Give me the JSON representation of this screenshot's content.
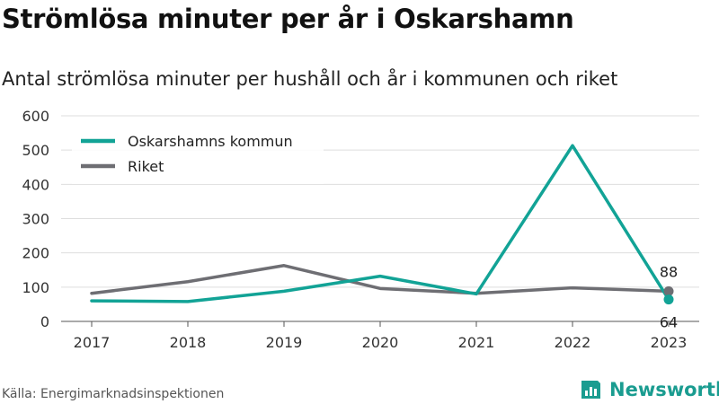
{
  "title": "Strömlösa minuter per år i Oskarshamn",
  "subtitle": "Antal strömlösa minuter per hushåll och år i kommunen och riket",
  "source": "Källa: Energimarknadsinspektionen",
  "brand": {
    "name": "Newsworthy",
    "icon": "newsworthy-logo-icon",
    "color": "#1a9c90"
  },
  "chart_data": {
    "type": "line",
    "title": "",
    "xlabel": "",
    "ylabel": "",
    "categories": [
      "2017",
      "2018",
      "2019",
      "2020",
      "2021",
      "2022",
      "2023"
    ],
    "ylim": [
      0,
      600
    ],
    "yticks": [
      0,
      100,
      200,
      300,
      400,
      500,
      600
    ],
    "grid": true,
    "legend": "top-left",
    "series": [
      {
        "name": "Oskarshamns kommun",
        "color": "#12a396",
        "values": [
          60,
          58,
          88,
          132,
          80,
          513,
          64
        ]
      },
      {
        "name": "Riket",
        "color": "#6e6e73",
        "values": [
          82,
          116,
          163,
          96,
          82,
          98,
          88
        ]
      }
    ],
    "annotations": [
      {
        "series": "Riket",
        "category": "2023",
        "label": "88",
        "position": "above"
      },
      {
        "series": "Oskarshamns kommun",
        "category": "2023",
        "label": "64",
        "position": "below"
      }
    ]
  }
}
